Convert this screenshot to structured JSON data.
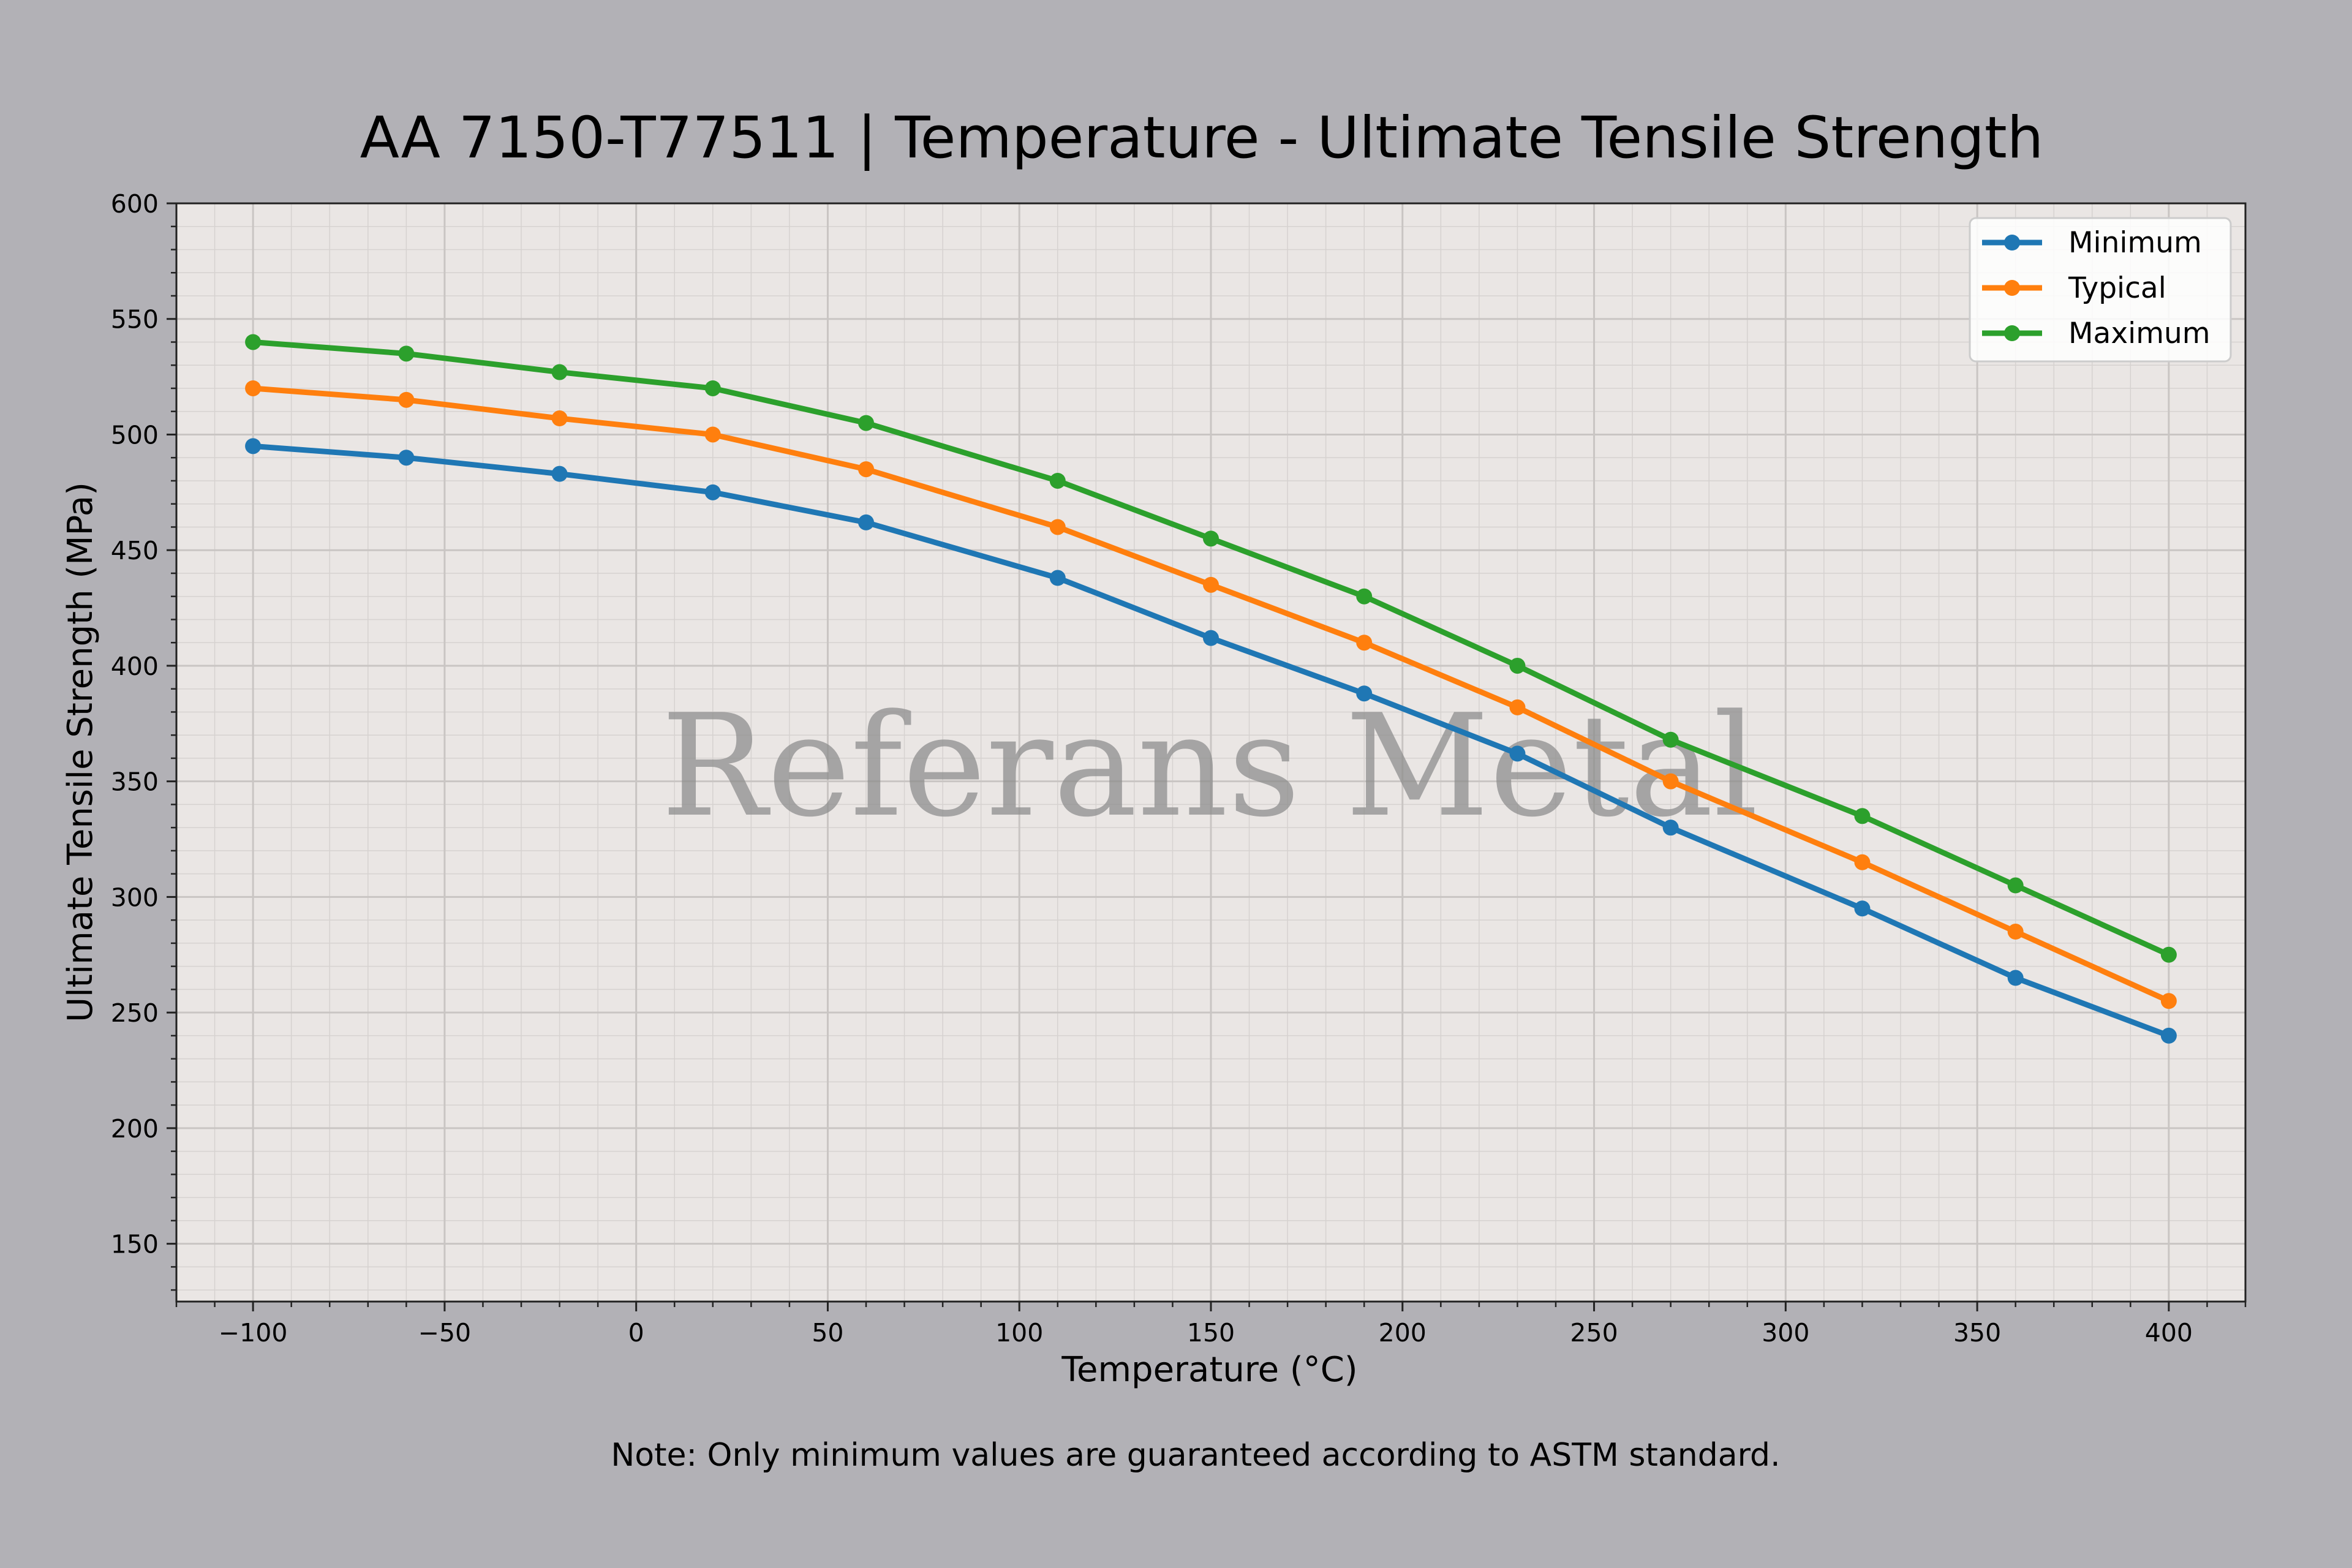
{
  "chart_data": {
    "type": "line",
    "title": "AA 7150-T77511 | Temperature - Ultimate Tensile Strength",
    "xlabel": "Temperature (°C)",
    "ylabel": "Ultimate Tensile Strength (MPa)",
    "xlim": [
      -120,
      420
    ],
    "ylim": [
      125,
      600
    ],
    "xticks": [
      -100,
      -50,
      0,
      50,
      100,
      150,
      200,
      250,
      300,
      350,
      400
    ],
    "xtick_labels": [
      "−100",
      "−50",
      "0",
      "50",
      "100",
      "150",
      "200",
      "250",
      "300",
      "350",
      "400"
    ],
    "yticks": [
      150,
      200,
      250,
      300,
      350,
      400,
      450,
      500,
      550,
      600
    ],
    "ytick_labels": [
      "150",
      "200",
      "250",
      "300",
      "350",
      "400",
      "450",
      "500",
      "550",
      "600"
    ],
    "grid": true,
    "legend_position": "top-right",
    "x": [
      -100,
      -60,
      -20,
      20,
      60,
      110,
      150,
      190,
      230,
      270,
      320,
      360,
      400
    ],
    "series": [
      {
        "name": "Minimum",
        "color": "#1f77b4",
        "values": [
          495,
          490,
          483,
          475,
          462,
          438,
          412,
          388,
          362,
          330,
          295,
          265,
          240
        ]
      },
      {
        "name": "Typical",
        "color": "#ff7f0e",
        "values": [
          520,
          515,
          507,
          500,
          485,
          460,
          435,
          410,
          382,
          350,
          315,
          285,
          255
        ]
      },
      {
        "name": "Maximum",
        "color": "#2ca02c",
        "values": [
          540,
          535,
          527,
          520,
          505,
          480,
          455,
          430,
          400,
          368,
          335,
          305,
          275
        ]
      }
    ],
    "note": "Note: Only minimum values are guaranteed according to ASTM standard.",
    "watermark": "Referans Metal"
  }
}
